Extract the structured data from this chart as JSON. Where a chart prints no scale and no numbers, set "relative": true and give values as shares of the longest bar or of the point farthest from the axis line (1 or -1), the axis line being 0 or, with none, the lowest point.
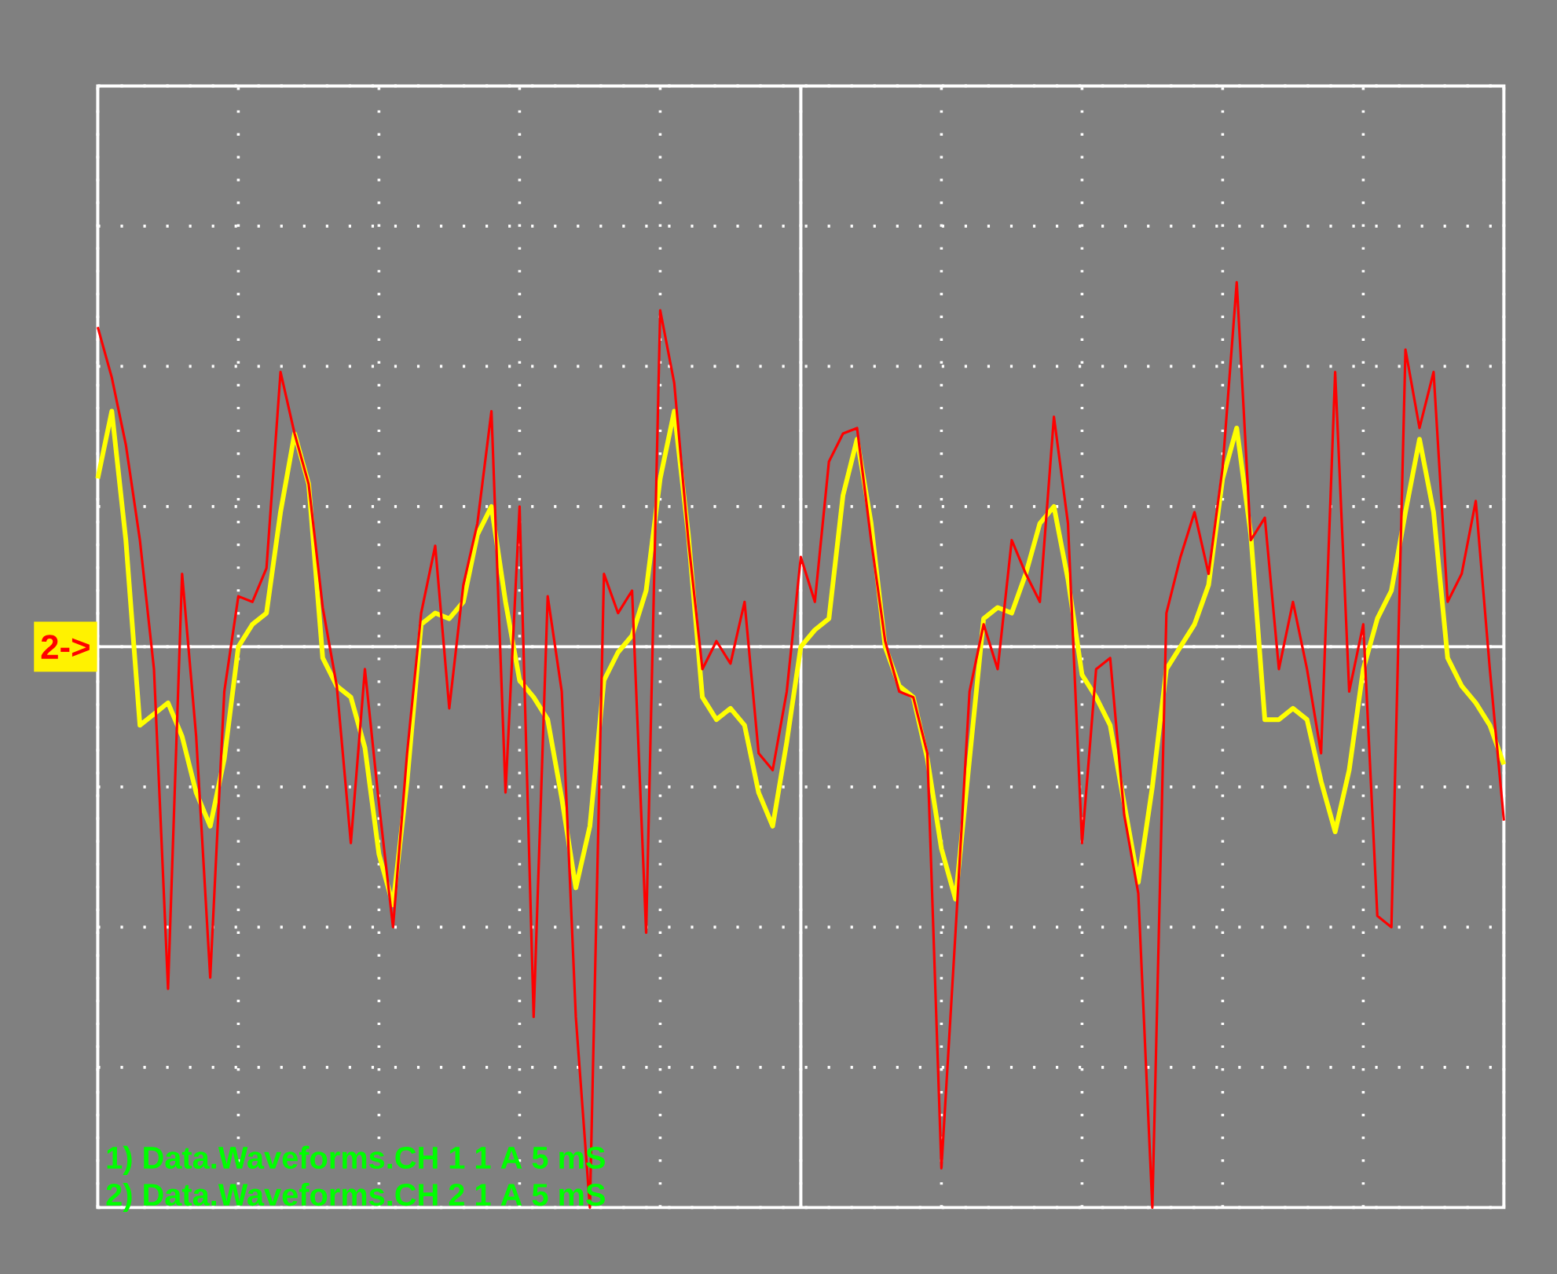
{
  "chart_data": {
    "type": "line",
    "relative": true,
    "grid": true,
    "marker": "none",
    "line_style": "solid",
    "categories": [
      null,
      null,
      null,
      null,
      null,
      null,
      null,
      null,
      null,
      null,
      null,
      null,
      null,
      null,
      null,
      null,
      null,
      null,
      null,
      null,
      null,
      null,
      null,
      null,
      null,
      null,
      null,
      null,
      null,
      null,
      null,
      null,
      null,
      null,
      null,
      null,
      null,
      null,
      null,
      null,
      null,
      null,
      null,
      null,
      null,
      null,
      null,
      null,
      null,
      null,
      null,
      null,
      null,
      null,
      null,
      null,
      null,
      null,
      null,
      null,
      null,
      null,
      null,
      null,
      null,
      null,
      null,
      null,
      null,
      null,
      null,
      null,
      null,
      null,
      null,
      null,
      null,
      null,
      null,
      null,
      null,
      null,
      null,
      null,
      null,
      null,
      null,
      null,
      null,
      null,
      null,
      null,
      null,
      null,
      null,
      null,
      null,
      null,
      null,
      null,
      null
    ],
    "series": [
      {
        "color": "#ffff00",
        "values": [
          0.3,
          0.42,
          0.19,
          -0.14,
          -0.12,
          -0.1,
          -0.16,
          -0.26,
          -0.32,
          -0.2,
          0.0,
          0.04,
          0.06,
          0.24,
          0.38,
          0.29,
          -0.02,
          -0.07,
          -0.09,
          -0.18,
          -0.37,
          -0.46,
          -0.24,
          0.04,
          0.06,
          0.05,
          0.08,
          0.2,
          0.25,
          0.08,
          -0.06,
          -0.09,
          -0.13,
          -0.27,
          -0.43,
          -0.32,
          -0.06,
          -0.01,
          0.02,
          0.1,
          0.3,
          0.42,
          0.2,
          -0.09,
          -0.13,
          -0.11,
          -0.14,
          -0.26,
          -0.32,
          -0.17,
          0.0,
          0.03,
          0.05,
          0.27,
          0.37,
          0.22,
          0.0,
          -0.07,
          -0.09,
          -0.2,
          -0.36,
          -0.45,
          -0.2,
          0.05,
          0.07,
          0.06,
          0.13,
          0.22,
          0.25,
          0.12,
          -0.05,
          -0.09,
          -0.14,
          -0.28,
          -0.42,
          -0.25,
          -0.04,
          0.0,
          0.04,
          0.11,
          0.3,
          0.39,
          0.2,
          -0.13,
          -0.13,
          -0.11,
          -0.13,
          -0.24,
          -0.33,
          -0.22,
          -0.04,
          0.05,
          0.1,
          0.24,
          0.37,
          0.24,
          -0.02,
          -0.07,
          -0.1,
          -0.14,
          -0.21
        ]
      },
      {
        "color": "#ff0000",
        "values": [
          0.57,
          0.48,
          0.36,
          0.19,
          -0.04,
          -0.61,
          0.13,
          -0.16,
          -0.59,
          -0.08,
          0.09,
          0.08,
          0.14,
          0.49,
          0.38,
          0.29,
          0.07,
          -0.07,
          -0.35,
          -0.04,
          -0.28,
          -0.5,
          -0.19,
          0.06,
          0.18,
          -0.11,
          0.11,
          0.22,
          0.42,
          -0.26,
          0.25,
          -0.66,
          0.09,
          -0.08,
          -0.66,
          -1.0,
          0.13,
          0.06,
          0.1,
          -0.51,
          0.6,
          0.47,
          0.19,
          -0.04,
          0.01,
          -0.03,
          0.08,
          -0.19,
          -0.22,
          -0.08,
          0.16,
          0.08,
          0.33,
          0.38,
          0.39,
          0.19,
          0.01,
          -0.08,
          -0.09,
          -0.19,
          -0.93,
          -0.51,
          -0.08,
          0.04,
          -0.04,
          0.19,
          0.13,
          0.08,
          0.41,
          0.22,
          -0.35,
          -0.04,
          -0.02,
          -0.3,
          -0.44,
          -1.0,
          0.06,
          0.16,
          0.24,
          0.13,
          0.32,
          0.65,
          0.19,
          0.23,
          -0.04,
          0.08,
          -0.04,
          -0.19,
          0.49,
          -0.08,
          0.04,
          -0.48,
          -0.5,
          0.53,
          0.39,
          0.49,
          0.08,
          0.13,
          0.26,
          -0.04,
          -0.31
        ]
      }
    ],
    "annotations": [
      {
        "text": "2->",
        "y": 0
      },
      "1) Data.Waveforms.CH 1 1  A 5 mS",
      "2) Data.Waveforms.CH 2 1  A 5 mS"
    ]
  }
}
